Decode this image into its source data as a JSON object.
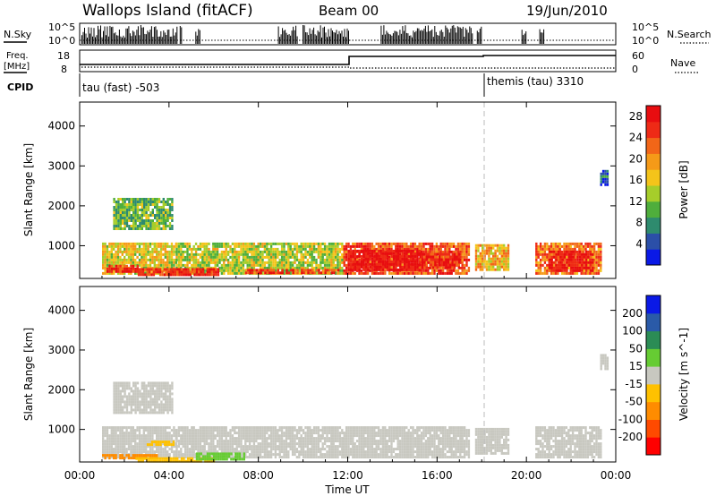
{
  "header": {
    "station": "Wallops Island (fitACF)",
    "beam": "Beam 00",
    "date": "19/Jun/2010"
  },
  "top_panels": {
    "nsky_label": "N.Sky",
    "nsearch_label": "N.Search",
    "freq_label_1": "Freq.",
    "freq_label_2": "[MHz]",
    "nave_label": "Nave",
    "cpid_label": "CPID",
    "left_scale": {
      "top": "10^5",
      "bottom": "10^0"
    },
    "right_scale": {
      "top": "10^5",
      "bottom": "10^0"
    },
    "freq_ticks": [
      "18",
      "8"
    ],
    "nave_ticks": [
      "60",
      "0"
    ],
    "cpid_entries": [
      {
        "label": "tau (fast) -503",
        "start_hour": 0
      },
      {
        "label": "themis (tau) 3310",
        "start_hour": 18
      }
    ]
  },
  "colors": {
    "power_scale": [
      "#0a19e6",
      "#2b4fa8",
      "#2e8b6e",
      "#4fae3c",
      "#a6cd2a",
      "#f4c41a",
      "#f59a18",
      "#f26618",
      "#ee2a16",
      "#e80d10"
    ],
    "velocity_scale": [
      "#ff0000",
      "#ff4a00",
      "#ff8c00",
      "#ffc100",
      "#c8c8c0",
      "#66cc33",
      "#2b8c55",
      "#2a5aa8",
      "#0a19e6"
    ]
  },
  "chart_data": [
    {
      "type": "heatmap",
      "panel": "power",
      "ylabel": "Slant Range [km]",
      "ylim": [
        180,
        4600
      ],
      "xlim": [
        0,
        24
      ],
      "yticks": [
        "1000",
        "2000",
        "3000",
        "4000"
      ],
      "colorbar": {
        "title": "Power [dB]",
        "ticks": [
          "4",
          "8",
          "12",
          "16",
          "20",
          "24",
          "28"
        ],
        "range": [
          0,
          30
        ]
      },
      "regions": [
        {
          "x0": 1.0,
          "x1": 4.3,
          "y0": 300,
          "y1": 1080,
          "value": 16
        },
        {
          "x0": 4.3,
          "x1": 11.8,
          "y0": 300,
          "y1": 1080,
          "value": 14
        },
        {
          "x0": 11.8,
          "x1": 17.4,
          "y0": 300,
          "y1": 1080,
          "value": 24
        },
        {
          "x0": 17.7,
          "x1": 19.2,
          "y0": 420,
          "y1": 1040,
          "value": 18
        },
        {
          "x0": 20.4,
          "x1": 23.3,
          "y0": 300,
          "y1": 1080,
          "value": 22
        },
        {
          "x0": 1.5,
          "x1": 4.1,
          "y0": 1400,
          "y1": 2200,
          "value": 11
        },
        {
          "x0": 1.2,
          "x1": 2.6,
          "y0": 350,
          "y1": 520,
          "value": 28
        },
        {
          "x0": 2.6,
          "x1": 6.2,
          "y0": 260,
          "y1": 440,
          "value": 26
        },
        {
          "x0": 7.4,
          "x1": 11.6,
          "y0": 300,
          "y1": 420,
          "value": 25
        },
        {
          "x0": 12.0,
          "x1": 15.2,
          "y0": 420,
          "y1": 900,
          "value": 29
        },
        {
          "x0": 15.2,
          "x1": 17.0,
          "y0": 460,
          "y1": 820,
          "value": 27
        },
        {
          "x0": 21.0,
          "x1": 23.0,
          "y0": 350,
          "y1": 880,
          "value": 28
        },
        {
          "x0": 23.3,
          "x1": 23.6,
          "y0": 2500,
          "y1": 2900,
          "value": 5
        }
      ]
    },
    {
      "type": "heatmap",
      "panel": "velocity",
      "ylabel": "Slant Range [km]",
      "xlabel": "Time UT",
      "ylim": [
        180,
        4600
      ],
      "xlim": [
        0,
        24
      ],
      "yticks": [
        "1000",
        "2000",
        "3000",
        "4000"
      ],
      "xticks": [
        "00:00",
        "04:00",
        "08:00",
        "12:00",
        "16:00",
        "20:00",
        "00:00"
      ],
      "colorbar": {
        "title": "Velocity [m s^-1]",
        "ticks": [
          "200",
          "100",
          "50",
          "15",
          "-15",
          "-50",
          "-100",
          "-200"
        ],
        "range": [
          -250,
          250
        ]
      },
      "regions": [
        {
          "x0": 1.0,
          "x1": 4.3,
          "y0": 300,
          "y1": 1080,
          "value": 0
        },
        {
          "x0": 4.3,
          "x1": 11.8,
          "y0": 300,
          "y1": 1080,
          "value": 0
        },
        {
          "x0": 11.8,
          "x1": 17.4,
          "y0": 300,
          "y1": 1080,
          "value": 0
        },
        {
          "x0": 17.7,
          "x1": 19.2,
          "y0": 420,
          "y1": 1040,
          "value": 0
        },
        {
          "x0": 20.4,
          "x1": 23.3,
          "y0": 300,
          "y1": 1080,
          "value": 0
        },
        {
          "x0": 1.5,
          "x1": 4.1,
          "y0": 1400,
          "y1": 2200,
          "value": 0
        },
        {
          "x0": 1.0,
          "x1": 3.5,
          "y0": 280,
          "y1": 380,
          "value": -60
        },
        {
          "x0": 2.5,
          "x1": 6.0,
          "y0": 200,
          "y1": 300,
          "value": -40
        },
        {
          "x0": 5.2,
          "x1": 7.4,
          "y0": 250,
          "y1": 420,
          "value": 35
        },
        {
          "x0": 3.0,
          "x1": 4.2,
          "y0": 600,
          "y1": 720,
          "value": -30
        },
        {
          "x0": 23.3,
          "x1": 23.6,
          "y0": 2500,
          "y1": 2900,
          "value": 0
        }
      ]
    }
  ]
}
